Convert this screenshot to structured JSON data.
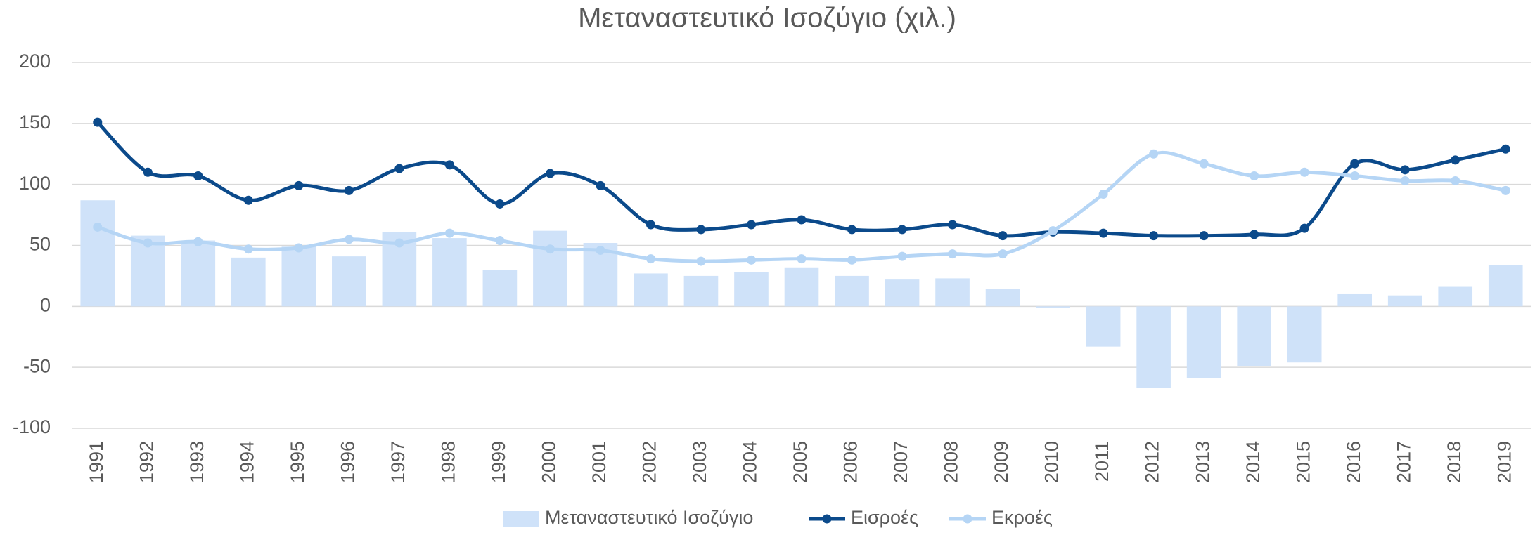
{
  "chart_data": {
    "type": "combo",
    "title": "Μεταναστευτικό Ισοζύγιο (χιλ.)",
    "categories": [
      "1991",
      "1992",
      "1993",
      "1994",
      "1995",
      "1996",
      "1997",
      "1998",
      "1999",
      "2000",
      "2001",
      "2002",
      "2003",
      "2004",
      "2005",
      "2006",
      "2007",
      "2008",
      "2009",
      "2010",
      "2011",
      "2012",
      "2013",
      "2014",
      "2015",
      "2016",
      "2017",
      "2018",
      "2019"
    ],
    "series": [
      {
        "name": "Μεταναστευτικό Ισοζύγιο",
        "type": "bar",
        "color": "#cfe2f9",
        "values": [
          87,
          58,
          54,
          40,
          49,
          41,
          61,
          56,
          30,
          62,
          52,
          27,
          25,
          28,
          32,
          25,
          22,
          23,
          14,
          -1,
          -33,
          -67,
          -59,
          -49,
          -46,
          10,
          9,
          16,
          34
        ]
      },
      {
        "name": "Εισροές",
        "type": "line",
        "color": "#0b4a8b",
        "values": [
          151,
          110,
          107,
          87,
          99,
          95,
          113,
          116,
          84,
          109,
          99,
          67,
          63,
          67,
          71,
          63,
          63,
          67,
          58,
          61,
          60,
          58,
          58,
          59,
          64,
          117,
          112,
          120,
          129
        ]
      },
      {
        "name": "Εκροές",
        "type": "line",
        "color": "#b5d5f5",
        "values": [
          65,
          52,
          53,
          47,
          48,
          55,
          52,
          60,
          54,
          47,
          46,
          39,
          37,
          38,
          39,
          38,
          41,
          43,
          43,
          62,
          92,
          125,
          117,
          107,
          110,
          107,
          103,
          103,
          95
        ]
      }
    ],
    "ylim": [
      -100,
      200
    ],
    "yticks": [
      -100,
      -50,
      0,
      50,
      100,
      150,
      200
    ],
    "grid": true,
    "legend": "bottom"
  }
}
